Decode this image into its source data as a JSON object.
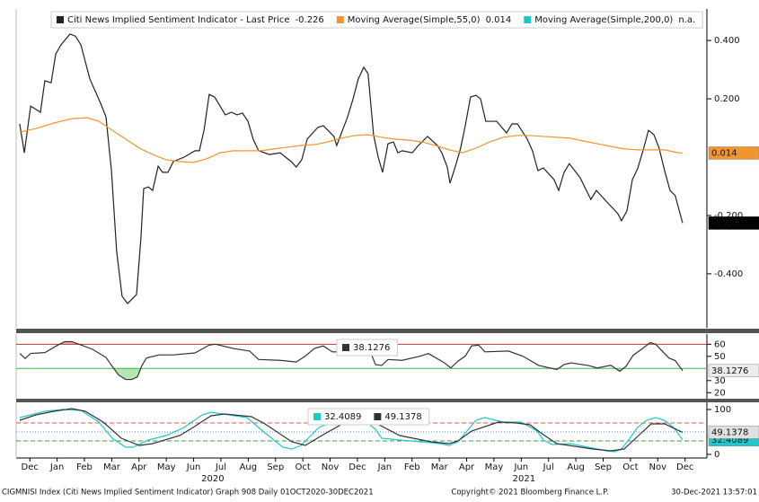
{
  "chart_data": [
    {
      "type": "line",
      "xlim": [
        0,
        25.3
      ],
      "ylim": [
        -0.585,
        0.508
      ],
      "yticks": [
        {
          "value": 0.4,
          "label": "0.400"
        },
        {
          "value": 0.2,
          "label": "0.200"
        },
        {
          "value": -0.2,
          "label": "-0.200"
        },
        {
          "value": -0.4,
          "label": "-0.400"
        }
      ],
      "series": [
        {
          "name": "Citi News Implied Sentiment Indicator - Last Price",
          "color": "#222222",
          "badge_color": "#000000",
          "value_label": "-0.226",
          "x": [
            0.13,
            0.3,
            0.53,
            0.89,
            1.05,
            1.28,
            1.45,
            1.64,
            1.97,
            2.17,
            2.37,
            2.7,
            3.09,
            3.29,
            3.49,
            3.68,
            3.88,
            4.08,
            4.41,
            4.57,
            4.67,
            4.84,
            5.0,
            5.2,
            5.36,
            5.56,
            5.76,
            6.15,
            6.55,
            6.71,
            6.88,
            7.07,
            7.27,
            7.66,
            7.89,
            8.09,
            8.29,
            8.49,
            8.68,
            8.88,
            9.28,
            9.67,
            10.07,
            10.26,
            10.46,
            10.66,
            11.05,
            11.25,
            11.64,
            11.74,
            12.14,
            12.34,
            12.53,
            12.73,
            12.89,
            13.09,
            13.26,
            13.42,
            13.62,
            13.82,
            13.98,
            14.14,
            14.51,
            14.7,
            15.07,
            15.43,
            15.59,
            15.79,
            15.89,
            16.09,
            16.28,
            16.45,
            16.64,
            16.84,
            17.01,
            17.2,
            17.6,
            17.96,
            18.16,
            18.36,
            18.72,
            18.91,
            19.11,
            19.31,
            19.7,
            19.87,
            20.07,
            20.26,
            20.66,
            21.05,
            21.25,
            21.64,
            22.04,
            22.17,
            22.37,
            22.57,
            22.76,
            22.96,
            23.16,
            23.36,
            23.55,
            23.75,
            23.95,
            24.14,
            24.41
          ],
          "values": [
            0.114,
            0.015,
            0.175,
            0.154,
            0.262,
            0.255,
            0.354,
            0.385,
            0.422,
            0.415,
            0.385,
            0.268,
            0.185,
            0.138,
            -0.046,
            -0.323,
            -0.477,
            -0.502,
            -0.471,
            -0.277,
            -0.108,
            -0.102,
            -0.114,
            -0.031,
            -0.052,
            -0.052,
            -0.015,
            0,
            0.022,
            0.022,
            0.092,
            0.215,
            0.206,
            0.145,
            0.154,
            0.145,
            0.151,
            0.123,
            0.062,
            0.022,
            0.009,
            0.015,
            -0.015,
            -0.034,
            -0.009,
            0.062,
            0.102,
            0.108,
            0.071,
            0.04,
            0.138,
            0.2,
            0.268,
            0.308,
            0.286,
            0.077,
            0,
            -0.052,
            0.046,
            0.052,
            0.015,
            0.022,
            0.015,
            0.037,
            0.071,
            0.04,
            0.015,
            -0.034,
            -0.089,
            -0.031,
            0.031,
            0.108,
            0.206,
            0.212,
            0.2,
            0.123,
            0.123,
            0.083,
            0.114,
            0.114,
            0.062,
            0.022,
            -0.046,
            -0.037,
            -0.077,
            -0.114,
            -0.052,
            -0.022,
            -0.071,
            -0.145,
            -0.114,
            -0.154,
            -0.194,
            -0.218,
            -0.185,
            -0.077,
            -0.04,
            0.022,
            0.092,
            0.077,
            0.031,
            -0.046,
            -0.114,
            -0.132,
            -0.226
          ]
        },
        {
          "name": "Moving Average(Simple,55,0)",
          "color": "#f0962e",
          "badge_color": "#f0962e",
          "value_label": "0.014",
          "x": [
            0.13,
            0.72,
            1.38,
            2.04,
            2.6,
            3.03,
            3.52,
            4.01,
            4.51,
            5.0,
            5.49,
            5.99,
            6.48,
            6.97,
            7.47,
            7.96,
            8.45,
            8.95,
            9.44,
            9.93,
            10.43,
            10.92,
            11.41,
            11.91,
            12.4,
            12.89,
            13.39,
            13.88,
            14.38,
            14.87,
            15.36,
            15.86,
            16.35,
            16.84,
            17.34,
            17.83,
            18.32,
            18.82,
            19.31,
            19.8,
            20.3,
            20.79,
            21.28,
            21.78,
            22.27,
            22.76,
            23.26,
            23.75,
            24.24,
            24.41
          ],
          "values": [
            0.086,
            0.098,
            0.117,
            0.132,
            0.135,
            0.123,
            0.092,
            0.062,
            0.031,
            0.009,
            -0.009,
            -0.015,
            -0.018,
            -0.006,
            0.015,
            0.022,
            0.022,
            0.022,
            0.028,
            0.034,
            0.04,
            0.043,
            0.052,
            0.065,
            0.074,
            0.077,
            0.068,
            0.062,
            0.058,
            0.052,
            0.04,
            0.025,
            0.015,
            0.031,
            0.052,
            0.068,
            0.074,
            0.074,
            0.071,
            0.068,
            0.065,
            0.055,
            0.046,
            0.037,
            0.028,
            0.025,
            0.025,
            0.025,
            0.015,
            0.014
          ]
        },
        {
          "name": "Moving Average(Simple,200,0)",
          "color": "#1ec8c8",
          "value_label": "n.a.",
          "x": [],
          "values": []
        }
      ]
    },
    {
      "type": "line",
      "xlim": [
        0,
        25.3
      ],
      "ylim": [
        15,
        68.4
      ],
      "yticks": [
        20,
        30,
        50,
        60
      ],
      "bands": [
        {
          "value": 60,
          "color": "#c0392b",
          "style": "solid",
          "fill": "#f3b3b0",
          "side": "above"
        },
        {
          "value": 40,
          "color": "#3cb34a",
          "style": "solid",
          "fill": "#b5e6b5",
          "side": "below"
        }
      ],
      "series": [
        {
          "color": "#333333",
          "badge_color": "#ececec",
          "value_label": "38.1276",
          "x": [
            0.13,
            0.33,
            0.53,
            1.05,
            1.58,
            1.78,
            2.04,
            2.3,
            2.8,
            3.29,
            3.49,
            3.75,
            4.01,
            4.24,
            4.44,
            4.61,
            4.77,
            5.23,
            5.76,
            6.55,
            7.07,
            7.3,
            7.96,
            8.55,
            8.88,
            9.67,
            10.26,
            10.59,
            10.92,
            11.25,
            11.58,
            11.84,
            12.4,
            12.66,
            12.89,
            13.16,
            13.39,
            13.62,
            14.14,
            14.8,
            15.1,
            15.69,
            15.92,
            16.18,
            16.45,
            16.68,
            16.94,
            17.17,
            18.03,
            18.55,
            19.14,
            19.8,
            20.07,
            20.33,
            20.95,
            21.28,
            21.78,
            22.11,
            22.34,
            22.6,
            23.03,
            23.22,
            23.42,
            23.91,
            24.14,
            24.41
          ],
          "values": [
            52.4,
            48.2,
            52.4,
            53.1,
            60,
            62.1,
            62.1,
            60,
            55.8,
            49.1,
            42.6,
            34.6,
            30.9,
            30.9,
            33.0,
            42.6,
            48.6,
            51.2,
            51.2,
            52.8,
            59.3,
            60,
            56.5,
            54.4,
            47.4,
            46.7,
            45.3,
            50.2,
            56.5,
            58.6,
            53.7,
            53.7,
            60,
            62.1,
            58.6,
            43.2,
            42.5,
            47.4,
            46.7,
            50.2,
            52.3,
            44.6,
            40.4,
            46.0,
            50.2,
            58.6,
            59.3,
            53.7,
            54.4,
            50.2,
            42.5,
            39.1,
            43.2,
            44.6,
            42.5,
            40.4,
            42.6,
            37.6,
            41.8,
            50.9,
            57.9,
            61.4,
            60,
            48.6,
            46.5,
            38.1276
          ]
        }
      ]
    },
    {
      "type": "line",
      "xlim": [
        0,
        25.3
      ],
      "ylim": [
        -8,
        116
      ],
      "yticks": [
        0,
        100
      ],
      "bands": [
        {
          "value": 70,
          "color": "#e05a4e",
          "style": "dashed"
        },
        {
          "value": 50,
          "color": "#5b8bd6",
          "style": "dotted"
        },
        {
          "value": 30,
          "color": "#3a9a45",
          "style": "dashed"
        }
      ],
      "xticks": [
        {
          "value": 0.5,
          "label": "Dec"
        },
        {
          "value": 1.5,
          "label": "Jan"
        },
        {
          "value": 2.5,
          "label": "Feb"
        },
        {
          "value": 3.5,
          "label": "Mar"
        },
        {
          "value": 4.5,
          "label": "Apr"
        },
        {
          "value": 5.5,
          "label": "May"
        },
        {
          "value": 6.5,
          "label": "Jun"
        },
        {
          "value": 7.5,
          "label": "Jul"
        },
        {
          "value": 8.5,
          "label": "Aug"
        },
        {
          "value": 9.5,
          "label": "Sep"
        },
        {
          "value": 10.5,
          "label": "Oct"
        },
        {
          "value": 11.5,
          "label": "Nov"
        },
        {
          "value": 12.5,
          "label": "Dec"
        },
        {
          "value": 13.5,
          "label": "Jan"
        },
        {
          "value": 14.5,
          "label": "Feb"
        },
        {
          "value": 15.5,
          "label": "Mar"
        },
        {
          "value": 16.5,
          "label": "Apr"
        },
        {
          "value": 17.5,
          "label": "May"
        },
        {
          "value": 18.5,
          "label": "Jun"
        },
        {
          "value": 19.5,
          "label": "Jul"
        },
        {
          "value": 20.5,
          "label": "Aug"
        },
        {
          "value": 21.5,
          "label": "Sep"
        },
        {
          "value": 22.5,
          "label": "Oct"
        },
        {
          "value": 23.5,
          "label": "Nov"
        },
        {
          "value": 24.5,
          "label": "Dec"
        }
      ],
      "annotations": [
        {
          "x": 7.2,
          "text": "2020"
        },
        {
          "x": 18.6,
          "text": "2021"
        }
      ],
      "series": [
        {
          "color": "#1ec8c8",
          "badge_color": "#1ec8c8",
          "value_label": "32.4089",
          "x": [
            0.13,
            1.05,
            1.71,
            2.37,
            3.03,
            3.52,
            4.01,
            4.28,
            4.84,
            5.49,
            6.15,
            6.81,
            7.14,
            7.8,
            8.45,
            9.11,
            9.77,
            10.1,
            10.43,
            11.09,
            11.74,
            12.66,
            13.16,
            13.39,
            14.05,
            14.87,
            15.53,
            15.86,
            16.18,
            16.51,
            16.84,
            17.17,
            17.83,
            18.49,
            19.08,
            19.31,
            19.64,
            20.3,
            20.95,
            21.61,
            21.94,
            22.17,
            22.43,
            22.76,
            23.09,
            23.42,
            23.75,
            24.08,
            24.41
          ],
          "values": [
            82,
            96,
            100,
            98,
            72,
            36,
            16,
            16,
            32,
            42,
            60,
            88,
            94,
            88,
            82,
            48,
            16,
            12,
            20,
            60,
            76,
            80,
            56,
            36,
            32,
            28,
            24,
            20,
            28,
            52,
            76,
            82,
            72,
            72,
            52,
            32,
            22,
            24,
            16,
            8,
            6,
            12,
            32,
            60,
            76,
            82,
            76,
            60,
            32.4089
          ]
        },
        {
          "color": "#333333",
          "badge_color": "#e0e0e0",
          "value_label": "49.1378",
          "x": [
            0.13,
            0.72,
            1.38,
            2.04,
            2.53,
            3.19,
            3.85,
            4.51,
            5.0,
            5.99,
            6.48,
            7.14,
            7.63,
            8.62,
            9.11,
            10.1,
            10.59,
            11.25,
            12.07,
            12.89,
            13.22,
            14.05,
            15.2,
            15.86,
            16.18,
            16.68,
            17.66,
            18.32,
            18.82,
            19.31,
            19.8,
            21.12,
            21.78,
            22.27,
            22.76,
            23.26,
            23.75,
            24.41
          ],
          "values": [
            76,
            88,
            96,
            102,
            96,
            72,
            36,
            20,
            24,
            42,
            60,
            86,
            90,
            84,
            68,
            28,
            20,
            44,
            72,
            84,
            68,
            42,
            28,
            24,
            30,
            52,
            72,
            70,
            66,
            44,
            24,
            12,
            8,
            12,
            40,
            68,
            68,
            49.1378
          ]
        }
      ]
    }
  ],
  "footer": {
    "left": "CIGMNISI Index (Citi News Implied Sentiment Indicator) Graph 908  Daily 01OCT2020-30DEC2021",
    "center": "Copyright© 2021 Bloomberg Finance L.P.",
    "right": "30-Dec-2021 13:57:01"
  }
}
